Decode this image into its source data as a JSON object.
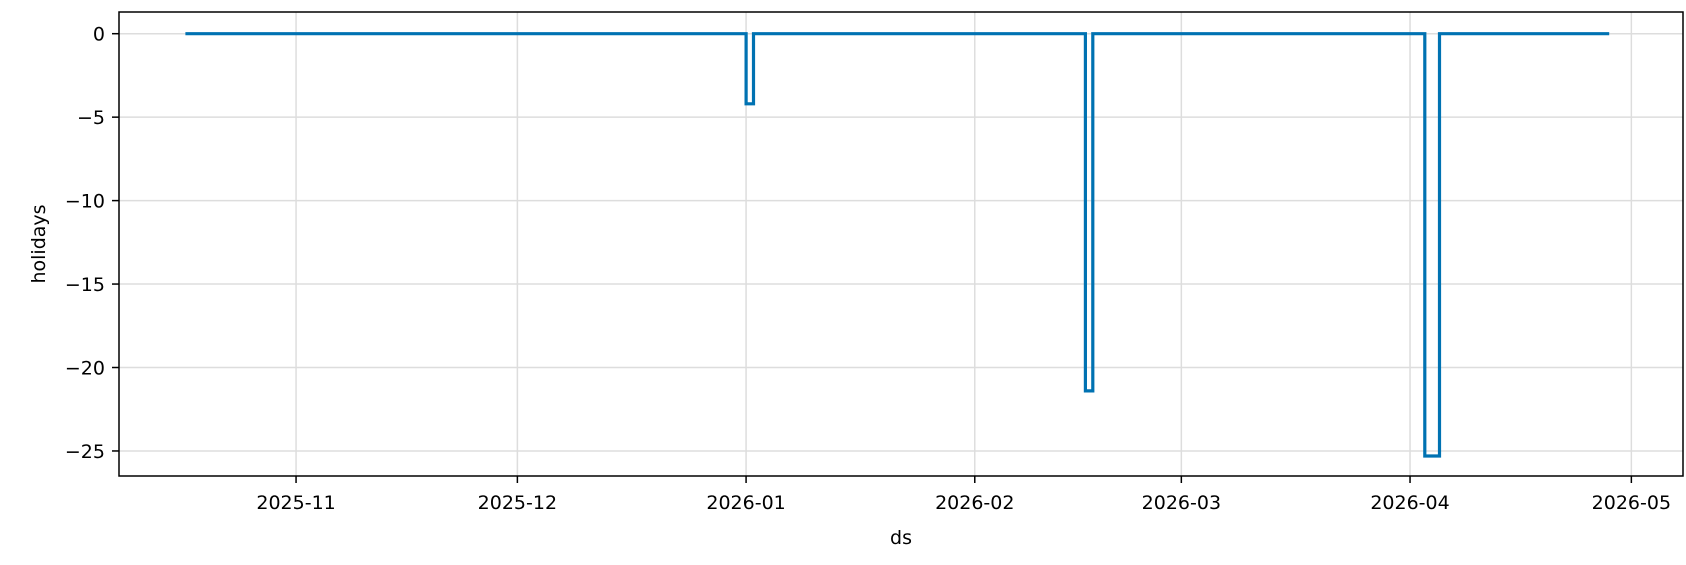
{
  "chart_data": {
    "type": "line",
    "title": "",
    "xlabel": "ds",
    "ylabel": "holidays",
    "grid": true,
    "legend": "none",
    "line_color": "#0072b2",
    "xlim": [
      "2025-10-08",
      "2026-05-08"
    ],
    "ylim": [
      -26.5,
      1.3
    ],
    "xticks": [
      "2025-11",
      "2025-12",
      "2026-01",
      "2026-02",
      "2026-03",
      "2026-04",
      "2026-05"
    ],
    "yticks": [
      "0",
      "−5",
      "−10",
      "−15",
      "−20",
      "−25"
    ],
    "ytick_values": [
      0,
      -5,
      -10,
      -15,
      -20,
      -25
    ],
    "series": [
      {
        "x": [
          "2025-10-17",
          "2026-01-01",
          "2026-01-01",
          "2026-01-02",
          "2026-01-02",
          "2026-02-16",
          "2026-02-16",
          "2026-02-17",
          "2026-02-17",
          "2026-04-03",
          "2026-04-03",
          "2026-04-05",
          "2026-04-05",
          "2026-04-28"
        ],
        "y": [
          0,
          0,
          -4.2,
          -4.2,
          0,
          0,
          -21.4,
          -21.4,
          0,
          0,
          -25.3,
          -25.3,
          0,
          0
        ]
      }
    ]
  }
}
